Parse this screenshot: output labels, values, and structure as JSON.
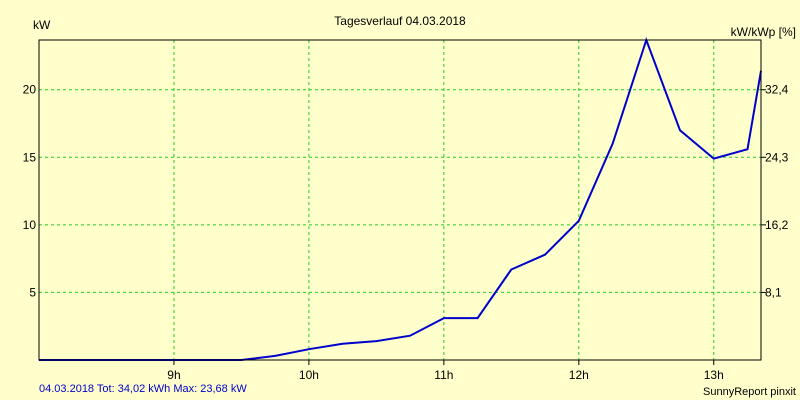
{
  "chart_data": {
    "type": "line",
    "title": "Tagesverlauf 04.03.2018",
    "ylabel_left": "kW",
    "ylabel_right": "kW/kWp [%]",
    "x_ticks": [
      "9h",
      "10h",
      "11h",
      "12h",
      "13h"
    ],
    "x_tick_values": [
      9,
      10,
      11,
      12,
      13
    ],
    "xlim": [
      8.0,
      13.35
    ],
    "y_ticks_left": [
      "5",
      "10",
      "15",
      "20"
    ],
    "y_tick_values": [
      5,
      10,
      15,
      20
    ],
    "y_ticks_right": [
      "8,1",
      "16,2",
      "24,3",
      "32,4"
    ],
    "ylim": [
      0,
      23.68
    ],
    "grid": true,
    "colors": {
      "line": "#0000cc",
      "grid": "#22cc22",
      "background": "#ffffcc",
      "frame": "#000000"
    },
    "series": [
      {
        "x": [
          8.0,
          8.25,
          8.5,
          8.75,
          9.0,
          9.25,
          9.5,
          9.75,
          10.0,
          10.25,
          10.5,
          10.75,
          11.0,
          11.25,
          11.5,
          11.75,
          12.0,
          12.25,
          12.5,
          12.75,
          13.0,
          13.25,
          13.35
        ],
        "values": [
          0,
          0,
          0,
          0,
          0,
          0,
          0,
          0.3,
          0.8,
          1.2,
          1.4,
          1.8,
          3.1,
          3.1,
          6.7,
          7.8,
          10.3,
          16.0,
          23.68,
          17.0,
          14.9,
          15.6,
          21.4
        ]
      }
    ]
  },
  "footer": {
    "left": "04.03.2018 Tot: 34,02 kWh Max: 23,68 kW",
    "right": "SunnyReport pinxit"
  }
}
